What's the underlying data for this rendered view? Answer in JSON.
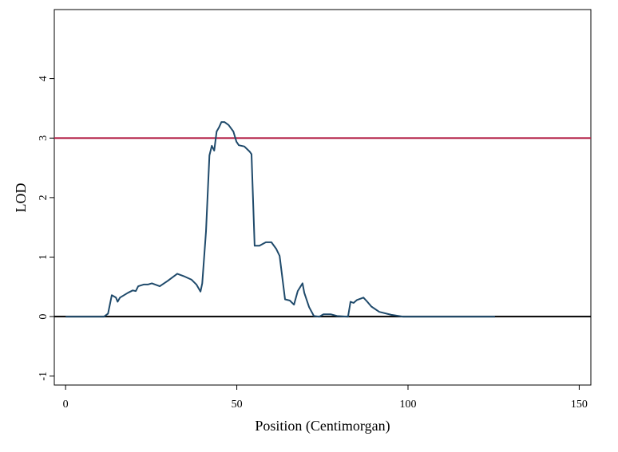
{
  "chart_data": {
    "type": "line",
    "x_label": "Position (Centimorgan)",
    "y_label": "LOD",
    "xlim": [
      -3.3,
      153.4
    ],
    "ylim": [
      -1.15,
      5.16
    ],
    "xticks": [
      0,
      50,
      100,
      150
    ],
    "yticks": [
      -1,
      0,
      1,
      2,
      3,
      4
    ],
    "hlines": [
      {
        "value": 3,
        "color": "#b5254b"
      },
      {
        "value": 0,
        "color": "#000000"
      }
    ],
    "series": [
      {
        "color": "#1f4a6b",
        "x": [
          0,
          11.2,
          12.4,
          13.5,
          14.7,
          15.2,
          15.9,
          18.2,
          19.6,
          20.5,
          21.2,
          22.8,
          24,
          25.2,
          27.5,
          29.8,
          32.6,
          34.5,
          36.8,
          38.2,
          39.4,
          39.9,
          41,
          42,
          42.7,
          43.4,
          44.1,
          44.8,
          45.5,
          46.4,
          47.6,
          49,
          49.9,
          50.6,
          52.2,
          53.8,
          54.3,
          55.2,
          56.6,
          58.5,
          60.1,
          61.5,
          62.5,
          64.1,
          65.5,
          66.7,
          67.8,
          69.2,
          69.7,
          71.1,
          72.5,
          74.1,
          75.3,
          77.4,
          79.3,
          82.5,
          83.2,
          84.1,
          85.1,
          87,
          88.1,
          89.3,
          91.6,
          95.1,
          98.6,
          125.4
        ],
        "values": [
          0,
          0,
          0.05,
          0.36,
          0.32,
          0.25,
          0.32,
          0.4,
          0.44,
          0.43,
          0.51,
          0.54,
          0.54,
          0.56,
          0.51,
          0.6,
          0.72,
          0.68,
          0.62,
          0.54,
          0.42,
          0.56,
          1.43,
          2.71,
          2.87,
          2.79,
          3.11,
          3.18,
          3.27,
          3.27,
          3.22,
          3.11,
          2.94,
          2.88,
          2.86,
          2.77,
          2.73,
          1.19,
          1.19,
          1.25,
          1.25,
          1.14,
          1.02,
          0.29,
          0.27,
          0.2,
          0.43,
          0.56,
          0.4,
          0.16,
          0.01,
          0,
          0.04,
          0.04,
          0.01,
          0,
          0.25,
          0.23,
          0.28,
          0.32,
          0.25,
          0.17,
          0.08,
          0.03,
          0,
          0
        ]
      }
    ]
  }
}
